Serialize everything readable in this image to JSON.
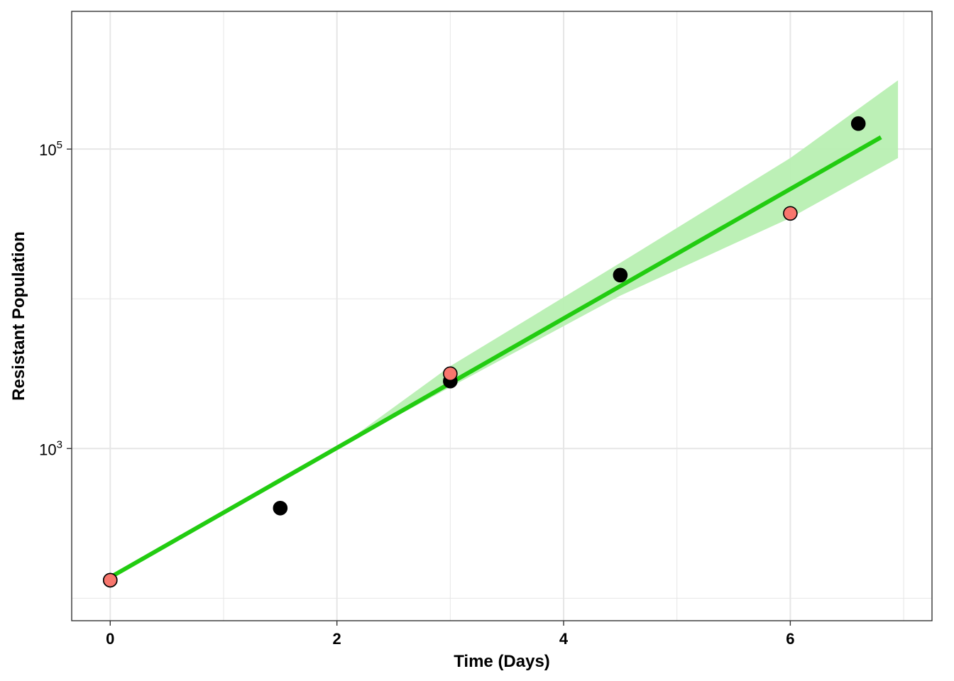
{
  "chart_data": {
    "type": "scatter",
    "xlabel": "Time (Days)",
    "ylabel": "Resistant Population",
    "x_ticks": [
      0,
      2,
      4,
      6
    ],
    "x_tick_labels": [
      "0",
      "2",
      "4",
      "6"
    ],
    "y_scale": "log10",
    "y_ticks": [
      1000,
      100000
    ],
    "y_tick_labels": [
      {
        "base": "10",
        "exp": "3"
      },
      {
        "base": "10",
        "exp": "5"
      }
    ],
    "xlim": [
      -0.34,
      7.25
    ],
    "ylim_log10": [
      1.85,
      5.92
    ],
    "grid": true,
    "legend": "none",
    "colors": {
      "black_points": "#000000",
      "red_points": "#F8766D",
      "fit_line": "#22CC11",
      "ribbon": "#B8EFB2",
      "grid": "#E6E6E6"
    },
    "series": [
      {
        "color": "black",
        "points": [
          {
            "x": 0,
            "y": 132
          },
          {
            "x": 1.5,
            "y": 400
          },
          {
            "x": 3,
            "y": 2820
          },
          {
            "x": 4.5,
            "y": 14400
          },
          {
            "x": 6.6,
            "y": 148000
          }
        ]
      },
      {
        "color": "red",
        "points": [
          {
            "x": 0,
            "y": 132
          },
          {
            "x": 3,
            "y": 3160
          },
          {
            "x": 6,
            "y": 37200
          }
        ]
      }
    ],
    "fit": {
      "type": "linear-on-log",
      "line": [
        {
          "x": 0,
          "y": 138
        },
        {
          "x": 6.8,
          "y": 120000
        }
      ],
      "ribbon": [
        {
          "x": 2,
          "lower": 1000,
          "upper": 1000
        },
        {
          "x": 3,
          "lower": 2570,
          "upper": 3550
        },
        {
          "x": 4.5,
          "lower": 10500,
          "upper": 17400
        },
        {
          "x": 6,
          "lower": 34700,
          "upper": 87100
        },
        {
          "x": 6.95,
          "lower": 87100,
          "upper": 288000
        }
      ]
    }
  }
}
